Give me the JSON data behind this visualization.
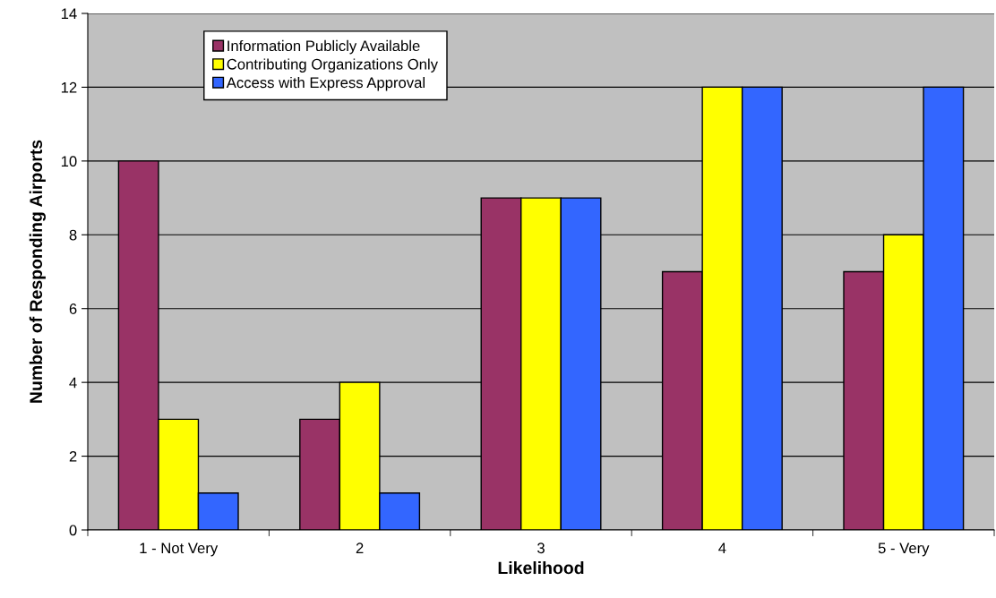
{
  "chart_data": {
    "type": "bar",
    "xlabel": "Likelihood",
    "ylabel": "Number of Responding Airports",
    "categories": [
      "1 - Not Very",
      "2",
      "3",
      "4",
      "5 - Very"
    ],
    "series": [
      {
        "name": "Information Publicly Available",
        "color": "#993366",
        "values": [
          10,
          3,
          9,
          7,
          7
        ]
      },
      {
        "name": "Contributing Organizations Only",
        "color": "#ffff00",
        "values": [
          3,
          4,
          9,
          12,
          8
        ]
      },
      {
        "name": "Access with Express Approval",
        "color": "#3366ff",
        "values": [
          1,
          1,
          9,
          12,
          12
        ]
      }
    ],
    "ylim": [
      0,
      14
    ],
    "yticks": [
      0,
      2,
      4,
      6,
      8,
      10,
      12,
      14
    ],
    "grid": "y",
    "legend": "top left"
  }
}
